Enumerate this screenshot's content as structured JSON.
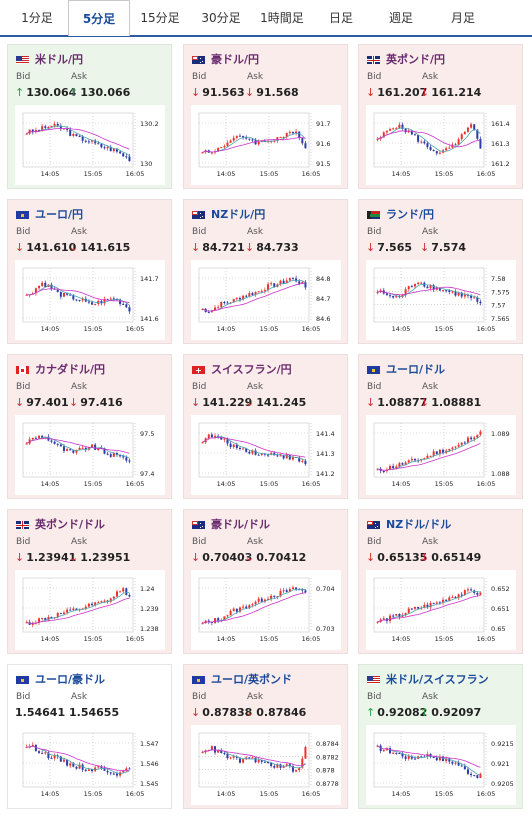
{
  "tabs": [
    {
      "label": "1分足",
      "active": false
    },
    {
      "label": "5分足",
      "active": true
    },
    {
      "label": "15分足",
      "active": false
    },
    {
      "label": "30分足",
      "active": false
    },
    {
      "label": "1時間足",
      "active": false
    },
    {
      "label": "日足",
      "active": false
    },
    {
      "label": "週足",
      "active": false
    },
    {
      "label": "月足",
      "active": false
    }
  ],
  "labels": {
    "bid": "Bid",
    "ask": "Ask"
  },
  "colors": {
    "up": "#2e9e3e",
    "down": "#d12b2b",
    "candle_up": "#e8332b",
    "candle_down": "#2d3aa8",
    "ma_short": "#4fa3b0",
    "ma_long": "#cc33cc"
  },
  "cards": [
    {
      "pair": "米ドル/円",
      "flag": "us",
      "direction": "up",
      "title_color": "purple",
      "bid": "130.064",
      "ask": "130.066",
      "bid_trend": "up",
      "ask_trend": "up",
      "chart_data": {
        "type": "candlestick",
        "x_ticks": [
          "14:05",
          "15:05",
          "16:05"
        ],
        "y_ticks": [
          "130.2",
          "130"
        ]
      }
    },
    {
      "pair": "豪ドル/円",
      "flag": "au",
      "direction": "down",
      "title_color": "purple",
      "bid": "91.563",
      "ask": "91.568",
      "bid_trend": "down",
      "ask_trend": "down",
      "chart_data": {
        "type": "candlestick",
        "x_ticks": [
          "14:05",
          "15:05",
          "16:05"
        ],
        "y_ticks": [
          "91.7",
          "91.6",
          "91.5"
        ]
      }
    },
    {
      "pair": "英ポンド/円",
      "flag": "gb",
      "direction": "down",
      "title_color": "purple",
      "bid": "161.207",
      "ask": "161.214",
      "bid_trend": "down",
      "ask_trend": "down",
      "chart_data": {
        "type": "candlestick",
        "x_ticks": [
          "14:05",
          "15:05",
          "16:05"
        ],
        "y_ticks": [
          "161.4",
          "161.3",
          "161.2"
        ]
      }
    },
    {
      "pair": "ユーロ/円",
      "flag": "eu",
      "direction": "down",
      "title_color": "blue",
      "bid": "141.610",
      "ask": "141.615",
      "bid_trend": "down",
      "ask_trend": "down",
      "chart_data": {
        "type": "candlestick",
        "x_ticks": [
          "14:05",
          "15:05",
          "16:05"
        ],
        "y_ticks": [
          "141.7",
          "141.6"
        ]
      }
    },
    {
      "pair": "NZドル/円",
      "flag": "nz",
      "direction": "down",
      "title_color": "blue",
      "bid": "84.721",
      "ask": "84.733",
      "bid_trend": "down",
      "ask_trend": "down",
      "chart_data": {
        "type": "candlestick",
        "x_ticks": [
          "14:05",
          "15:05",
          "16:05"
        ],
        "y_ticks": [
          "84.8",
          "84.7",
          "84.6"
        ]
      }
    },
    {
      "pair": "ランド/円",
      "flag": "za",
      "direction": "down",
      "title_color": "blue",
      "bid": "7.565",
      "ask": "7.574",
      "bid_trend": "down",
      "ask_trend": "down",
      "chart_data": {
        "type": "candlestick",
        "x_ticks": [
          "14:05",
          "15:05",
          "16:05"
        ],
        "y_ticks": [
          "7.58",
          "7.575",
          "7.57",
          "7.565"
        ]
      }
    },
    {
      "pair": "カナダドル/円",
      "flag": "ca",
      "direction": "down",
      "title_color": "purple",
      "bid": "97.401",
      "ask": "97.416",
      "bid_trend": "down",
      "ask_trend": "down",
      "chart_data": {
        "type": "candlestick",
        "x_ticks": [
          "14:05",
          "15:05",
          "16:05"
        ],
        "y_ticks": [
          "97.5",
          "97.4"
        ]
      }
    },
    {
      "pair": "スイスフラン/円",
      "flag": "ch",
      "direction": "down",
      "title_color": "purple",
      "bid": "141.229",
      "ask": "141.245",
      "bid_trend": "down",
      "ask_trend": "down",
      "chart_data": {
        "type": "candlestick",
        "x_ticks": [
          "14:05",
          "15:05",
          "16:05"
        ],
        "y_ticks": [
          "141.4",
          "141.3",
          "141.2"
        ]
      }
    },
    {
      "pair": "ユーロ/ドル",
      "flag": "eu",
      "direction": "down",
      "title_color": "blue",
      "bid": "1.08877",
      "ask": "1.08881",
      "bid_trend": "down",
      "ask_trend": "down",
      "chart_data": {
        "type": "candlestick",
        "x_ticks": [
          "14:05",
          "15:05",
          "16:05"
        ],
        "y_ticks": [
          "1.089",
          "1.088"
        ]
      }
    },
    {
      "pair": "英ポンド/ドル",
      "flag": "gb",
      "direction": "down",
      "title_color": "purple",
      "bid": "1.23941",
      "ask": "1.23951",
      "bid_trend": "down",
      "ask_trend": "down",
      "chart_data": {
        "type": "candlestick",
        "x_ticks": [
          "14:05",
          "15:05",
          "16:05"
        ],
        "y_ticks": [
          "1.24",
          "1.239",
          "1.238"
        ]
      }
    },
    {
      "pair": "豪ドル/ドル",
      "flag": "au",
      "direction": "down",
      "title_color": "purple",
      "bid": "0.70403",
      "ask": "0.70412",
      "bid_trend": "down",
      "ask_trend": "down",
      "chart_data": {
        "type": "candlestick",
        "x_ticks": [
          "14:05",
          "15:05",
          "16:05"
        ],
        "y_ticks": [
          "0.704",
          "0.703"
        ]
      }
    },
    {
      "pair": "NZドル/ドル",
      "flag": "nz",
      "direction": "down",
      "title_color": "blue",
      "bid": "0.65135",
      "ask": "0.65149",
      "bid_trend": "down",
      "ask_trend": "down",
      "chart_data": {
        "type": "candlestick",
        "x_ticks": [
          "14:05",
          "15:05",
          "16:05"
        ],
        "y_ticks": [
          "0.652",
          "0.651",
          "0.65"
        ]
      }
    },
    {
      "pair": "ユーロ/豪ドル",
      "flag": "eu",
      "direction": "flat",
      "title_color": "blue",
      "bid": "1.54641",
      "ask": "1.54655",
      "bid_trend": "none",
      "ask_trend": "none",
      "chart_data": {
        "type": "candlestick",
        "x_ticks": [
          "14:05",
          "15:05",
          "16:05"
        ],
        "y_ticks": [
          "1.547",
          "1.546",
          "1.545"
        ]
      }
    },
    {
      "pair": "ユーロ/英ポンド",
      "flag": "eu",
      "direction": "down",
      "title_color": "blue",
      "bid": "0.87838",
      "ask": "0.87846",
      "bid_trend": "down",
      "ask_trend": "down",
      "chart_data": {
        "type": "candlestick",
        "x_ticks": [
          "14:05",
          "15:05",
          "16:05"
        ],
        "y_ticks": [
          "0.8784",
          "0.8782",
          "0.878",
          "0.8778"
        ]
      }
    },
    {
      "pair": "米ドル/スイスフラン",
      "flag": "us",
      "direction": "up",
      "title_color": "blue",
      "bid": "0.92082",
      "ask": "0.92097",
      "bid_trend": "up",
      "ask_trend": "up",
      "chart_data": {
        "type": "candlestick",
        "x_ticks": [
          "14:05",
          "15:05",
          "16:05"
        ],
        "y_ticks": [
          "0.9215",
          "0.921",
          "0.9205"
        ]
      }
    }
  ]
}
